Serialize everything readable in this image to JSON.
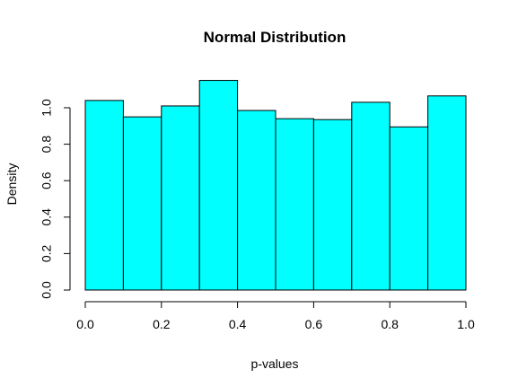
{
  "chart_data": {
    "type": "bar",
    "title": "Normal Distribution",
    "xlabel": "p-values",
    "ylabel": "Density",
    "bins": [
      {
        "start": 0.0,
        "end": 0.1,
        "value": 1.04
      },
      {
        "start": 0.1,
        "end": 0.2,
        "value": 0.95
      },
      {
        "start": 0.2,
        "end": 0.3,
        "value": 1.01
      },
      {
        "start": 0.3,
        "end": 0.4,
        "value": 1.15
      },
      {
        "start": 0.4,
        "end": 0.5,
        "value": 0.985
      },
      {
        "start": 0.5,
        "end": 0.6,
        "value": 0.94
      },
      {
        "start": 0.6,
        "end": 0.7,
        "value": 0.935
      },
      {
        "start": 0.7,
        "end": 0.8,
        "value": 1.03
      },
      {
        "start": 0.8,
        "end": 0.9,
        "value": 0.895
      },
      {
        "start": 0.9,
        "end": 1.0,
        "value": 1.065
      }
    ],
    "xlim": [
      0,
      1
    ],
    "ylim": [
      0,
      1.15
    ],
    "xticks": [
      "0.0",
      "0.2",
      "0.4",
      "0.6",
      "0.8",
      "1.0"
    ],
    "yticks": [
      "0.0",
      "0.2",
      "0.4",
      "0.6",
      "0.8",
      "1.0"
    ],
    "grid": false,
    "bar_color": "#00ffff",
    "edge_color": "#000000"
  }
}
